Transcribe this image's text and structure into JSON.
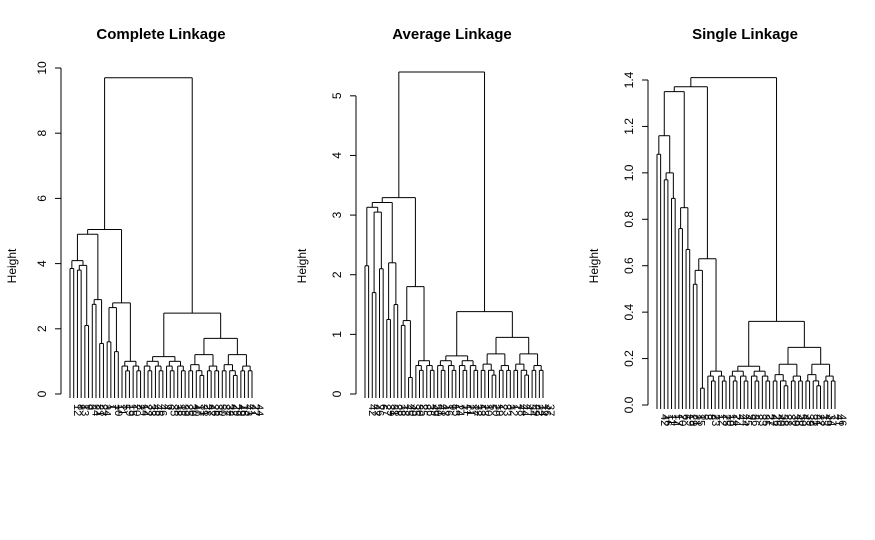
{
  "chart_data": [
    {
      "type": "dendrogram",
      "title": "Complete Linkage",
      "ylabel": "Height",
      "ylim": [
        0,
        10
      ],
      "y_ticks": [
        0,
        2,
        4,
        6,
        8,
        10
      ],
      "root_height": 9.7,
      "leaf_labels": [
        "12",
        "8",
        "13",
        "9",
        "3",
        "24",
        "21",
        "23",
        "34",
        "1",
        "7",
        "10",
        "11",
        "5",
        "19",
        "15",
        "20",
        "2",
        "14",
        "22",
        "33",
        "48",
        "45",
        "46",
        "4",
        "6",
        "35",
        "38",
        "18",
        "39",
        "25",
        "30",
        "40",
        "17",
        "31",
        "28",
        "47",
        "26",
        "36",
        "50",
        "37",
        "32",
        "42",
        "29",
        "49",
        "16",
        "43",
        "41",
        "27",
        "44"
      ],
      "visible_leaf_labels": [
        "12",
        "8",
        "13",
        "9",
        "3",
        "24",
        "21",
        "23",
        "34",
        "1",
        "7",
        "10",
        "11",
        "5",
        "19",
        "15",
        "20",
        "2",
        "14",
        "22",
        "33",
        "48",
        "45",
        "46",
        "4",
        "6",
        "35",
        "38",
        "18",
        "39",
        "25",
        "30",
        "40",
        "17",
        "31",
        "28",
        "47",
        "26",
        "36",
        "50",
        "37",
        "32",
        "42",
        "16",
        "43"
      ],
      "merge_heights": [
        9.7,
        4.75,
        4.9,
        3.6,
        3.85,
        2.95,
        3.8,
        2.1,
        2.15,
        2.75,
        1.55,
        2.35,
        2.65,
        1.6,
        1.3
      ]
    },
    {
      "type": "dendrogram",
      "title": "Average Linkage",
      "ylabel": "Height",
      "ylim": [
        0,
        5.5
      ],
      "y_ticks": [
        0,
        1,
        2,
        3,
        4,
        5
      ],
      "root_height": 5.4,
      "leaf_labels": [
        "42",
        "47",
        "26",
        "6",
        "27",
        "39",
        "31",
        "28",
        "38",
        "18",
        "45",
        "40",
        "35",
        "30",
        "25",
        "8",
        "36",
        "49",
        "50",
        "41",
        "43",
        "16",
        "9",
        "15",
        "24",
        "7",
        "11",
        "21",
        "17",
        "32",
        "13",
        "23",
        "10",
        "5",
        "20",
        "19",
        "2",
        "33",
        "3",
        "12",
        "1",
        "48",
        "44",
        "4",
        "34",
        "29",
        "22",
        "14",
        "46",
        "37"
      ],
      "visible_leaf_labels": [
        "42",
        "47",
        "6",
        "27",
        "39",
        "31",
        "28",
        "18",
        "38",
        "45",
        "40",
        "30",
        "25",
        "35",
        "36",
        "8",
        "49",
        "50",
        "41",
        "43",
        "16",
        "9",
        "15",
        "24",
        "11",
        "7",
        "21",
        "17",
        "13",
        "23",
        "10",
        "5",
        "20",
        "19",
        "33",
        "12",
        "48",
        "44",
        "14",
        "22",
        "8",
        "3"
      ],
      "merge_heights": [
        5.4,
        2.6,
        3.2,
        2.1,
        2.15,
        3.05,
        1.7,
        2.1,
        2.2,
        1.25,
        1.5,
        1.8,
        1.0,
        1.15
      ]
    },
    {
      "type": "dendrogram",
      "title": "Single Linkage",
      "ylabel": "Height",
      "ylim": [
        0,
        1.4
      ],
      "y_ticks": [
        0.0,
        0.2,
        0.4,
        0.6,
        0.8,
        1.0,
        1.2,
        1.4
      ],
      "root_height": 1.41,
      "leaf_labels": [
        "42",
        "16",
        "11",
        "14",
        "17",
        "20",
        "6",
        "19",
        "29",
        "21",
        "15",
        "5",
        "3",
        "8",
        "23",
        "1",
        "12",
        "25",
        "10",
        "18",
        "24",
        "4",
        "44",
        "45",
        "9",
        "36",
        "2",
        "33",
        "35",
        "27",
        "47",
        "26",
        "40",
        "38",
        "28",
        "37",
        "30",
        "48",
        "50",
        "43",
        "39",
        "32",
        "31",
        "22",
        "13",
        "49",
        "34",
        "7",
        "41",
        "46"
      ],
      "visible_leaf_labels": [
        "42",
        "16",
        "11",
        "14",
        "17",
        "20",
        "6",
        "19",
        "29",
        "21",
        "5",
        "15",
        "23",
        "12",
        "8",
        "9",
        "1",
        "25",
        "10",
        "18",
        "24",
        "44",
        "45",
        "4",
        "33",
        "35",
        "26",
        "27",
        "31",
        "39",
        "47",
        "48",
        "40",
        "28",
        "37",
        "50",
        "38",
        "43",
        "30",
        "34",
        "32",
        "41",
        "46",
        "49"
      ],
      "merge_heights": [
        1.41,
        1.37,
        1.35,
        1.16,
        1.08,
        1.0,
        0.97,
        0.89,
        0.85,
        0.76,
        0.67,
        0.63,
        0.58,
        0.52
      ]
    }
  ]
}
